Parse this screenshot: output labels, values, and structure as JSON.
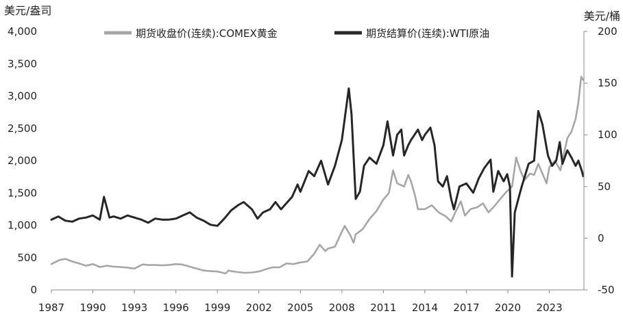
{
  "chart_data": {
    "type": "line",
    "title": "",
    "y_left_unit": "美元/盎司",
    "y_right_unit": "美元/桶",
    "ylim_left": [
      0,
      4000
    ],
    "ylim_right": [
      -50,
      200
    ],
    "xlim": [
      1987,
      2025.5
    ],
    "x_ticks": [
      "1987",
      "1990",
      "1993",
      "1996",
      "1999",
      "2002",
      "2005",
      "2008",
      "2011",
      "2014",
      "2017",
      "2020",
      "2023"
    ],
    "y_left_ticks": [
      "0",
      "500",
      "1,000",
      "1,500",
      "2,000",
      "2,500",
      "3,000",
      "3,500",
      "4,000"
    ],
    "y_right_ticks": [
      "-50",
      "0",
      "50",
      "100",
      "150",
      "200"
    ],
    "legend_position": "top",
    "series": [
      {
        "name": "期货收盘价(连续):COMEX黄金",
        "axis": "left",
        "color": "#a6a6a6",
        "points": [
          [
            1987.0,
            400
          ],
          [
            1987.6,
            465
          ],
          [
            1988.0,
            480
          ],
          [
            1988.5,
            440
          ],
          [
            1989.0,
            410
          ],
          [
            1989.5,
            375
          ],
          [
            1990.0,
            400
          ],
          [
            1990.5,
            355
          ],
          [
            1991.0,
            375
          ],
          [
            1991.5,
            360
          ],
          [
            1992.0,
            355
          ],
          [
            1992.5,
            345
          ],
          [
            1993.0,
            330
          ],
          [
            1993.6,
            395
          ],
          [
            1994.0,
            385
          ],
          [
            1994.5,
            385
          ],
          [
            1995.0,
            380
          ],
          [
            1995.5,
            385
          ],
          [
            1996.0,
            400
          ],
          [
            1996.5,
            390
          ],
          [
            1997.0,
            360
          ],
          [
            1997.5,
            330
          ],
          [
            1998.0,
            300
          ],
          [
            1998.5,
            290
          ],
          [
            1999.0,
            285
          ],
          [
            1999.6,
            255
          ],
          [
            1999.8,
            300
          ],
          [
            2000.0,
            290
          ],
          [
            2000.5,
            275
          ],
          [
            2001.0,
            265
          ],
          [
            2001.5,
            270
          ],
          [
            2002.0,
            285
          ],
          [
            2002.5,
            320
          ],
          [
            2003.0,
            350
          ],
          [
            2003.5,
            350
          ],
          [
            2004.0,
            410
          ],
          [
            2004.5,
            400
          ],
          [
            2005.0,
            425
          ],
          [
            2005.5,
            440
          ],
          [
            2006.0,
            560
          ],
          [
            2006.4,
            700
          ],
          [
            2006.8,
            600
          ],
          [
            2007.0,
            640
          ],
          [
            2007.5,
            670
          ],
          [
            2008.0,
            900
          ],
          [
            2008.2,
            990
          ],
          [
            2008.6,
            850
          ],
          [
            2008.85,
            730
          ],
          [
            2009.0,
            860
          ],
          [
            2009.5,
            940
          ],
          [
            2010.0,
            1100
          ],
          [
            2010.5,
            1220
          ],
          [
            2011.0,
            1400
          ],
          [
            2011.4,
            1500
          ],
          [
            2011.7,
            1850
          ],
          [
            2012.0,
            1650
          ],
          [
            2012.5,
            1600
          ],
          [
            2012.8,
            1780
          ],
          [
            2013.0,
            1680
          ],
          [
            2013.3,
            1450
          ],
          [
            2013.5,
            1250
          ],
          [
            2014.0,
            1250
          ],
          [
            2014.5,
            1310
          ],
          [
            2015.0,
            1200
          ],
          [
            2015.5,
            1140
          ],
          [
            2015.9,
            1060
          ],
          [
            2016.2,
            1200
          ],
          [
            2016.6,
            1370
          ],
          [
            2016.9,
            1150
          ],
          [
            2017.3,
            1250
          ],
          [
            2017.8,
            1280
          ],
          [
            2018.2,
            1340
          ],
          [
            2018.6,
            1200
          ],
          [
            2019.0,
            1290
          ],
          [
            2019.5,
            1420
          ],
          [
            2019.9,
            1520
          ],
          [
            2020.3,
            1600
          ],
          [
            2020.6,
            2050
          ],
          [
            2020.9,
            1850
          ],
          [
            2021.2,
            1700
          ],
          [
            2021.6,
            1800
          ],
          [
            2021.9,
            1780
          ],
          [
            2022.2,
            1950
          ],
          [
            2022.6,
            1750
          ],
          [
            2022.8,
            1650
          ],
          [
            2023.0,
            1900
          ],
          [
            2023.4,
            2000
          ],
          [
            2023.8,
            1850
          ],
          [
            2024.0,
            2050
          ],
          [
            2024.3,
            2350
          ],
          [
            2024.6,
            2450
          ],
          [
            2024.9,
            2650
          ],
          [
            2025.1,
            2900
          ],
          [
            2025.3,
            3300
          ],
          [
            2025.45,
            3250
          ]
        ]
      },
      {
        "name": "期货结算价(连续):WTI原油",
        "axis": "right",
        "color": "#262626",
        "points": [
          [
            1987.0,
            18
          ],
          [
            1987.5,
            21
          ],
          [
            1988.0,
            17
          ],
          [
            1988.5,
            16
          ],
          [
            1989.0,
            19
          ],
          [
            1989.5,
            20
          ],
          [
            1990.0,
            22
          ],
          [
            1990.5,
            18
          ],
          [
            1990.8,
            40
          ],
          [
            1991.0,
            30
          ],
          [
            1991.2,
            20
          ],
          [
            1991.5,
            21
          ],
          [
            1992.0,
            19
          ],
          [
            1992.5,
            22
          ],
          [
            1993.0,
            20
          ],
          [
            1993.5,
            18
          ],
          [
            1994.0,
            15
          ],
          [
            1994.5,
            19
          ],
          [
            1995.0,
            18
          ],
          [
            1995.5,
            18
          ],
          [
            1996.0,
            19
          ],
          [
            1996.5,
            22
          ],
          [
            1997.0,
            25
          ],
          [
            1997.5,
            20
          ],
          [
            1998.0,
            17
          ],
          [
            1998.5,
            13
          ],
          [
            1999.0,
            12
          ],
          [
            1999.5,
            19
          ],
          [
            2000.0,
            27
          ],
          [
            2000.5,
            32
          ],
          [
            2000.9,
            35
          ],
          [
            2001.5,
            28
          ],
          [
            2001.9,
            19
          ],
          [
            2002.3,
            25
          ],
          [
            2002.8,
            28
          ],
          [
            2003.2,
            35
          ],
          [
            2003.6,
            28
          ],
          [
            2004.0,
            34
          ],
          [
            2004.4,
            40
          ],
          [
            2004.8,
            52
          ],
          [
            2005.0,
            45
          ],
          [
            2005.6,
            65
          ],
          [
            2006.0,
            60
          ],
          [
            2006.5,
            75
          ],
          [
            2007.0,
            52
          ],
          [
            2007.5,
            70
          ],
          [
            2008.0,
            95
          ],
          [
            2008.5,
            145
          ],
          [
            2008.7,
            120
          ],
          [
            2009.0,
            38
          ],
          [
            2009.3,
            45
          ],
          [
            2009.6,
            70
          ],
          [
            2010.0,
            78
          ],
          [
            2010.5,
            72
          ],
          [
            2011.0,
            90
          ],
          [
            2011.3,
            113
          ],
          [
            2011.7,
            80
          ],
          [
            2012.0,
            100
          ],
          [
            2012.3,
            105
          ],
          [
            2012.5,
            80
          ],
          [
            2012.8,
            90
          ],
          [
            2013.0,
            95
          ],
          [
            2013.5,
            105
          ],
          [
            2013.8,
            95
          ],
          [
            2014.0,
            100
          ],
          [
            2014.4,
            107
          ],
          [
            2014.7,
            90
          ],
          [
            2014.95,
            55
          ],
          [
            2015.3,
            50
          ],
          [
            2015.6,
            60
          ],
          [
            2015.9,
            38
          ],
          [
            2016.1,
            28
          ],
          [
            2016.5,
            50
          ],
          [
            2017.0,
            53
          ],
          [
            2017.5,
            44
          ],
          [
            2017.9,
            58
          ],
          [
            2018.3,
            68
          ],
          [
            2018.75,
            76
          ],
          [
            2018.95,
            45
          ],
          [
            2019.3,
            65
          ],
          [
            2019.7,
            55
          ],
          [
            2019.95,
            62
          ],
          [
            2020.15,
            50
          ],
          [
            2020.3,
            -37
          ],
          [
            2020.5,
            25
          ],
          [
            2020.8,
            40
          ],
          [
            2021.0,
            50
          ],
          [
            2021.5,
            72
          ],
          [
            2021.9,
            75
          ],
          [
            2022.2,
            123
          ],
          [
            2022.5,
            110
          ],
          [
            2022.9,
            80
          ],
          [
            2023.2,
            70
          ],
          [
            2023.5,
            75
          ],
          [
            2023.75,
            93
          ],
          [
            2023.95,
            72
          ],
          [
            2024.3,
            85
          ],
          [
            2024.6,
            78
          ],
          [
            2024.9,
            70
          ],
          [
            2025.1,
            75
          ],
          [
            2025.35,
            65
          ],
          [
            2025.45,
            60
          ]
        ]
      }
    ]
  }
}
